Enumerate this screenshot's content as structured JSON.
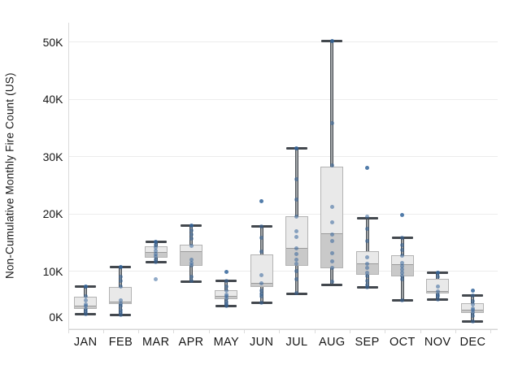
{
  "figure": {
    "y_axis_title": "Non-Cumulative Monthly Fire Count (US)"
  },
  "chart_data": {
    "type": "boxplot",
    "title": "",
    "xlabel": "",
    "ylabel": "Non-Cumulative Monthly Fire Count (US)",
    "unit": "values in thousands (K) of fires",
    "grid": "horizontal",
    "legend": "none",
    "ylim": [
      0,
      53
    ],
    "yticks": [
      {
        "value": 0,
        "label": "0K"
      },
      {
        "value": 10,
        "label": "10K"
      },
      {
        "value": 20,
        "label": "20K"
      },
      {
        "value": 30,
        "label": "30K"
      },
      {
        "value": 40,
        "label": "40K"
      },
      {
        "value": 50,
        "label": "50K"
      }
    ],
    "categories": [
      "JAN",
      "FEB",
      "MAR",
      "APR",
      "MAY",
      "JUN",
      "JUL",
      "AUG",
      "SEP",
      "OCT",
      "NOV",
      "DEC"
    ],
    "series": [
      {
        "month": "JAN",
        "whisker_low": 2.6,
        "q1": 3.4,
        "median": 3.9,
        "q3": 5.6,
        "whisker_high": 7.3,
        "points": [
          7.3,
          5.6,
          4.9,
          4.3,
          3.9,
          3.4,
          3.0,
          2.6
        ]
      },
      {
        "month": "FEB",
        "whisker_low": 2.4,
        "q1": 4.3,
        "median": 4.6,
        "q3": 7.3,
        "whisker_high": 10.8,
        "points": [
          10.8,
          9.1,
          8.4,
          7.3,
          5.0,
          4.4,
          3.9,
          3.3,
          2.8,
          2.4
        ]
      },
      {
        "month": "MAR",
        "whisker_low": 11.6,
        "q1": 12.4,
        "median": 13.3,
        "q3": 14.4,
        "whisker_high": 15.2,
        "points": [
          15.2,
          14.6,
          14.1,
          13.6,
          13.1,
          12.6,
          12.1,
          11.6,
          8.6
        ]
      },
      {
        "month": "APR",
        "whisker_low": 8.2,
        "q1": 11.0,
        "median": 13.4,
        "q3": 14.6,
        "whisker_high": 18.0,
        "points": [
          18.0,
          17.2,
          16.4,
          15.7,
          14.5,
          12.1,
          11.5,
          11.0,
          9.0,
          8.3
        ]
      },
      {
        "month": "MAY",
        "whisker_low": 3.9,
        "q1": 5.1,
        "median": 5.6,
        "q3": 6.7,
        "whisker_high": 8.4,
        "points": [
          9.9,
          8.4,
          7.4,
          6.6,
          6.0,
          5.6,
          5.2,
          4.7,
          4.3,
          3.9
        ]
      },
      {
        "month": "JUN",
        "whisker_low": 4.6,
        "q1": 7.3,
        "median": 7.8,
        "q3": 12.9,
        "whisker_high": 17.9,
        "points": [
          22.3,
          17.9,
          15.9,
          13.4,
          9.4,
          8.0,
          6.6,
          6.1,
          5.6,
          4.6
        ]
      },
      {
        "month": "JUL",
        "whisker_low": 6.1,
        "q1": 11.0,
        "median": 14.0,
        "q3": 19.6,
        "whisker_high": 31.5,
        "points": [
          31.5,
          26.1,
          22.5,
          19.6,
          17.0,
          16.0,
          14.0,
          13.0,
          12.0,
          11.3,
          10.1,
          8.7,
          6.3
        ]
      },
      {
        "month": "AUG",
        "whisker_low": 7.7,
        "q1": 10.6,
        "median": 16.5,
        "q3": 28.2,
        "whisker_high": 50.2,
        "points": [
          50.2,
          35.9,
          28.5,
          21.3,
          18.6,
          16.5,
          15.3,
          13.2,
          11.8,
          10.6,
          8.2
        ]
      },
      {
        "month": "SEP",
        "whisker_low": 7.2,
        "q1": 9.4,
        "median": 11.3,
        "q3": 13.5,
        "whisker_high": 19.3,
        "points": [
          28.1,
          19.5,
          17.4,
          15.3,
          12.5,
          11.3,
          10.6,
          9.8,
          9.2,
          8.4,
          7.6,
          7.2
        ]
      },
      {
        "month": "OCT",
        "whisker_low": 5.0,
        "q1": 9.2,
        "median": 11.1,
        "q3": 12.8,
        "whisker_high": 15.8,
        "points": [
          19.8,
          15.8,
          14.6,
          13.7,
          12.8,
          11.5,
          10.9,
          10.3,
          9.8,
          9.2,
          8.7,
          5.0
        ]
      },
      {
        "month": "NOV",
        "whisker_low": 5.1,
        "q1": 6.1,
        "median": 6.5,
        "q3": 8.7,
        "whisker_high": 9.8,
        "points": [
          9.8,
          9.0,
          7.3,
          6.5,
          5.9,
          5.6,
          5.1
        ]
      },
      {
        "month": "DEC",
        "whisker_low": 1.3,
        "q1": 2.7,
        "median": 3.2,
        "q3": 4.4,
        "whisker_high": 5.8,
        "points": [
          6.6,
          5.8,
          4.8,
          4.2,
          3.6,
          3.2,
          2.8,
          2.2,
          1.3
        ]
      }
    ]
  },
  "colors": {
    "point": "#34659b",
    "box_fill_upper": "#e9e9e9",
    "box_fill_lower": "#c9c9c9",
    "box_border": "#b3b3b3",
    "median_line": "#9b9b9b",
    "whisker": "#4b5056",
    "gridline": "#ececec",
    "text": "#161616",
    "background": "#ffffff"
  }
}
